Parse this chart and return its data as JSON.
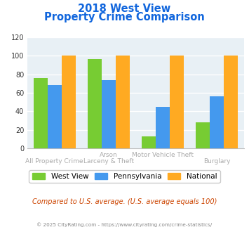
{
  "title_line1": "2018 West View",
  "title_line2": "Property Crime Comparison",
  "top_labels": [
    "",
    "Arson",
    "Motor Vehicle Theft",
    ""
  ],
  "bottom_labels": [
    "All Property Crime",
    "Larceny & Theft",
    "",
    "Burglary"
  ],
  "west_view": [
    76,
    96,
    13,
    28
  ],
  "pennsylvania": [
    68,
    74,
    45,
    56
  ],
  "national": [
    100,
    100,
    100,
    100
  ],
  "colors": {
    "west_view": "#77cc33",
    "pennsylvania": "#4499ee",
    "national": "#ffaa22"
  },
  "ylim": [
    0,
    120
  ],
  "yticks": [
    0,
    20,
    40,
    60,
    80,
    100,
    120
  ],
  "title_color": "#1166dd",
  "bg_color": "#e8f0f5",
  "grid_color": "#ffffff",
  "subtitle": "Compared to U.S. average. (U.S. average equals 100)",
  "subtitle_color": "#cc4400",
  "footer": "© 2025 CityRating.com - https://www.cityrating.com/crime-statistics/",
  "footer_color": "#888888",
  "legend_labels": [
    "West View",
    "Pennsylvania",
    "National"
  ],
  "xlabel_top_color": "#aaaaaa",
  "xlabel_bot_color": "#aaaaaa"
}
